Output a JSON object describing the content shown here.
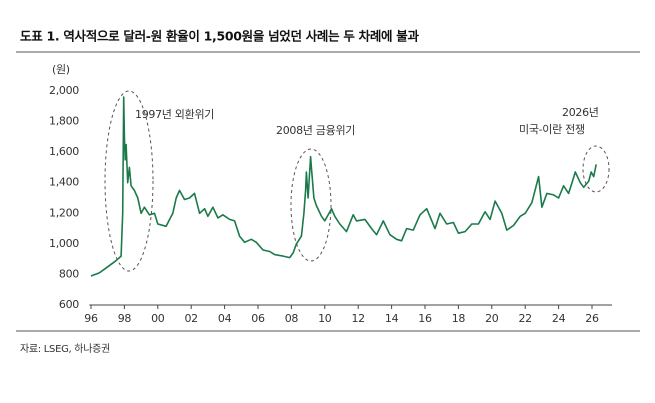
{
  "chart_data": {
    "type": "line",
    "title": "도표 1. 역사적으로 달러-원 환율이 1,500원을 넘었던 사례는 두 차례에 불과",
    "y_label": "(원)",
    "source": "자료: LSEG, 하나증권",
    "annotations": [
      "1997년 외환위기",
      "2008년 금융위기",
      "2026년",
      "미국-이란 전쟁"
    ],
    "color": "#1b7a4a",
    "x": [
      1996.0,
      1996.5,
      1997.0,
      1997.5,
      1997.8,
      1997.9,
      1997.96,
      1998.0,
      1998.05,
      1998.1,
      1998.2,
      1998.3,
      1998.4,
      1998.6,
      1998.8,
      1999.0,
      1999.2,
      1999.5,
      1999.8,
      2000.0,
      2000.5,
      2000.9,
      2001.1,
      2001.3,
      2001.6,
      2001.9,
      2002.2,
      2002.5,
      2002.8,
      2003.0,
      2003.3,
      2003.6,
      2003.9,
      2004.3,
      2004.6,
      2004.9,
      2005.2,
      2005.6,
      2005.9,
      2006.3,
      2006.7,
      2007.0,
      2007.5,
      2007.9,
      2008.1,
      2008.3,
      2008.6,
      2008.75,
      2008.85,
      2008.9,
      2009.0,
      2009.15,
      2009.2,
      2009.35,
      2009.5,
      2009.8,
      2010.0,
      2010.4,
      2010.6,
      2010.9,
      2011.3,
      2011.7,
      2011.9,
      2012.4,
      2012.8,
      2013.1,
      2013.5,
      2013.9,
      2014.3,
      2014.6,
      2014.9,
      2015.3,
      2015.7,
      2016.1,
      2016.6,
      2016.9,
      2017.3,
      2017.7,
      2018.0,
      2018.4,
      2018.8,
      2019.2,
      2019.6,
      2019.9,
      2020.2,
      2020.6,
      2020.9,
      2021.3,
      2021.7,
      2022.0,
      2022.4,
      2022.8,
      2023.0,
      2023.3,
      2023.7,
      2024.0,
      2024.3,
      2024.6,
      2024.8,
      2025.0,
      2025.3,
      2025.5,
      2025.8,
      2025.95,
      2026.1,
      2026.25
    ],
    "values": [
      790,
      810,
      850,
      890,
      920,
      1200,
      1960,
      1700,
      1550,
      1650,
      1400,
      1500,
      1380,
      1350,
      1300,
      1200,
      1240,
      1190,
      1200,
      1130,
      1115,
      1200,
      1300,
      1350,
      1290,
      1300,
      1330,
      1200,
      1230,
      1180,
      1240,
      1170,
      1190,
      1160,
      1150,
      1050,
      1010,
      1030,
      1010,
      960,
      950,
      930,
      920,
      910,
      940,
      1000,
      1050,
      1200,
      1350,
      1470,
      1300,
      1570,
      1500,
      1300,
      1250,
      1180,
      1150,
      1230,
      1180,
      1130,
      1080,
      1190,
      1150,
      1160,
      1100,
      1060,
      1150,
      1060,
      1030,
      1020,
      1100,
      1090,
      1190,
      1230,
      1100,
      1200,
      1130,
      1140,
      1070,
      1080,
      1130,
      1130,
      1210,
      1160,
      1280,
      1200,
      1090,
      1120,
      1180,
      1200,
      1270,
      1440,
      1240,
      1330,
      1320,
      1300,
      1380,
      1330,
      1400,
      1470,
      1400,
      1370,
      1410,
      1470,
      1440,
      1520
    ],
    "xlim": [
      1995.9,
      2027.2
    ],
    "ylim": [
      600,
      2000
    ],
    "xticks": [
      {
        "value": 1996,
        "label": "96"
      },
      {
        "value": 1998,
        "label": "98"
      },
      {
        "value": 2000,
        "label": "00"
      },
      {
        "value": 2002,
        "label": "02"
      },
      {
        "value": 2004,
        "label": "04"
      },
      {
        "value": 2006,
        "label": "06"
      },
      {
        "value": 2008,
        "label": "08"
      },
      {
        "value": 2010,
        "label": "10"
      },
      {
        "value": 2012,
        "label": "12"
      },
      {
        "value": 2014,
        "label": "14"
      },
      {
        "value": 2016,
        "label": "16"
      },
      {
        "value": 2018,
        "label": "18"
      },
      {
        "value": 2020,
        "label": "20"
      },
      {
        "value": 2022,
        "label": "22"
      },
      {
        "value": 2024,
        "label": "24"
      },
      {
        "value": 2026,
        "label": "26"
      }
    ],
    "yticks": [
      600,
      800,
      {
        "value": 1000,
        "label": "1,000"
      },
      {
        "value": 1200,
        "label": "1,200"
      },
      {
        "value": 1400,
        "label": "1,400"
      },
      {
        "value": 1600,
        "label": "1,600"
      },
      {
        "value": 1800,
        "label": "1,800"
      },
      {
        "value": 2000,
        "label": "2,000"
      }
    ]
  }
}
